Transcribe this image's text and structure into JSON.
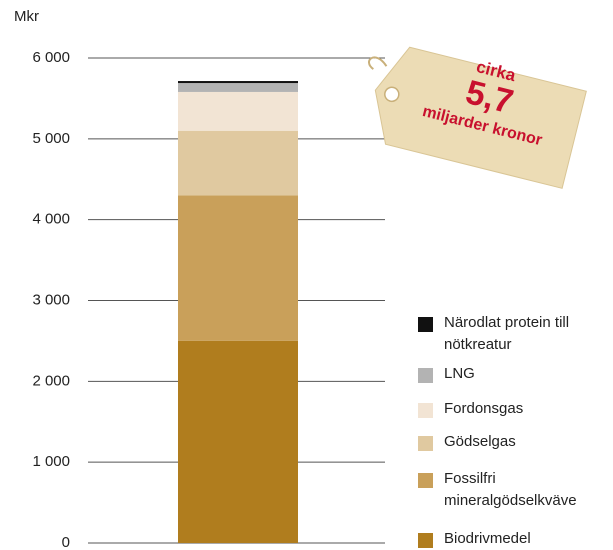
{
  "chart_data": {
    "type": "stacked_bar",
    "y_label": "Mkr",
    "annotation": [
      "cirka",
      "5,7",
      "miljarder kronor"
    ],
    "categories": [
      null
    ],
    "series": [
      {
        "name": "Biodrivmedel",
        "color": "#b07d1e",
        "values": [
          2500
        ]
      },
      {
        "name": "Fossilfri mineralgödselkväve",
        "color": "#c9a05a",
        "values": [
          1800
        ]
      },
      {
        "name": "Gödselgas",
        "color": "#e0c9a0",
        "values": [
          800
        ]
      },
      {
        "name": "Fordonsgas",
        "color": "#f2e4d4",
        "values": [
          480
        ]
      },
      {
        "name": "LNG",
        "color": "#b3b3b3",
        "values": [
          110
        ]
      },
      {
        "name": "Närodlat protein till nötkreatur",
        "color": "#111111",
        "values": [
          25
        ]
      }
    ],
    "ylim": [
      0,
      6000
    ],
    "yticks": [
      0,
      {
        "value": 1000,
        "label": "1 000"
      },
      {
        "value": 2000,
        "label": "2 000"
      },
      {
        "value": 3000,
        "label": "3 000"
      },
      {
        "value": 4000,
        "label": "4 000"
      },
      {
        "value": 5000,
        "label": "5 000"
      },
      {
        "value": 6000,
        "label": "6 000"
      }
    ],
    "grid": true
  }
}
